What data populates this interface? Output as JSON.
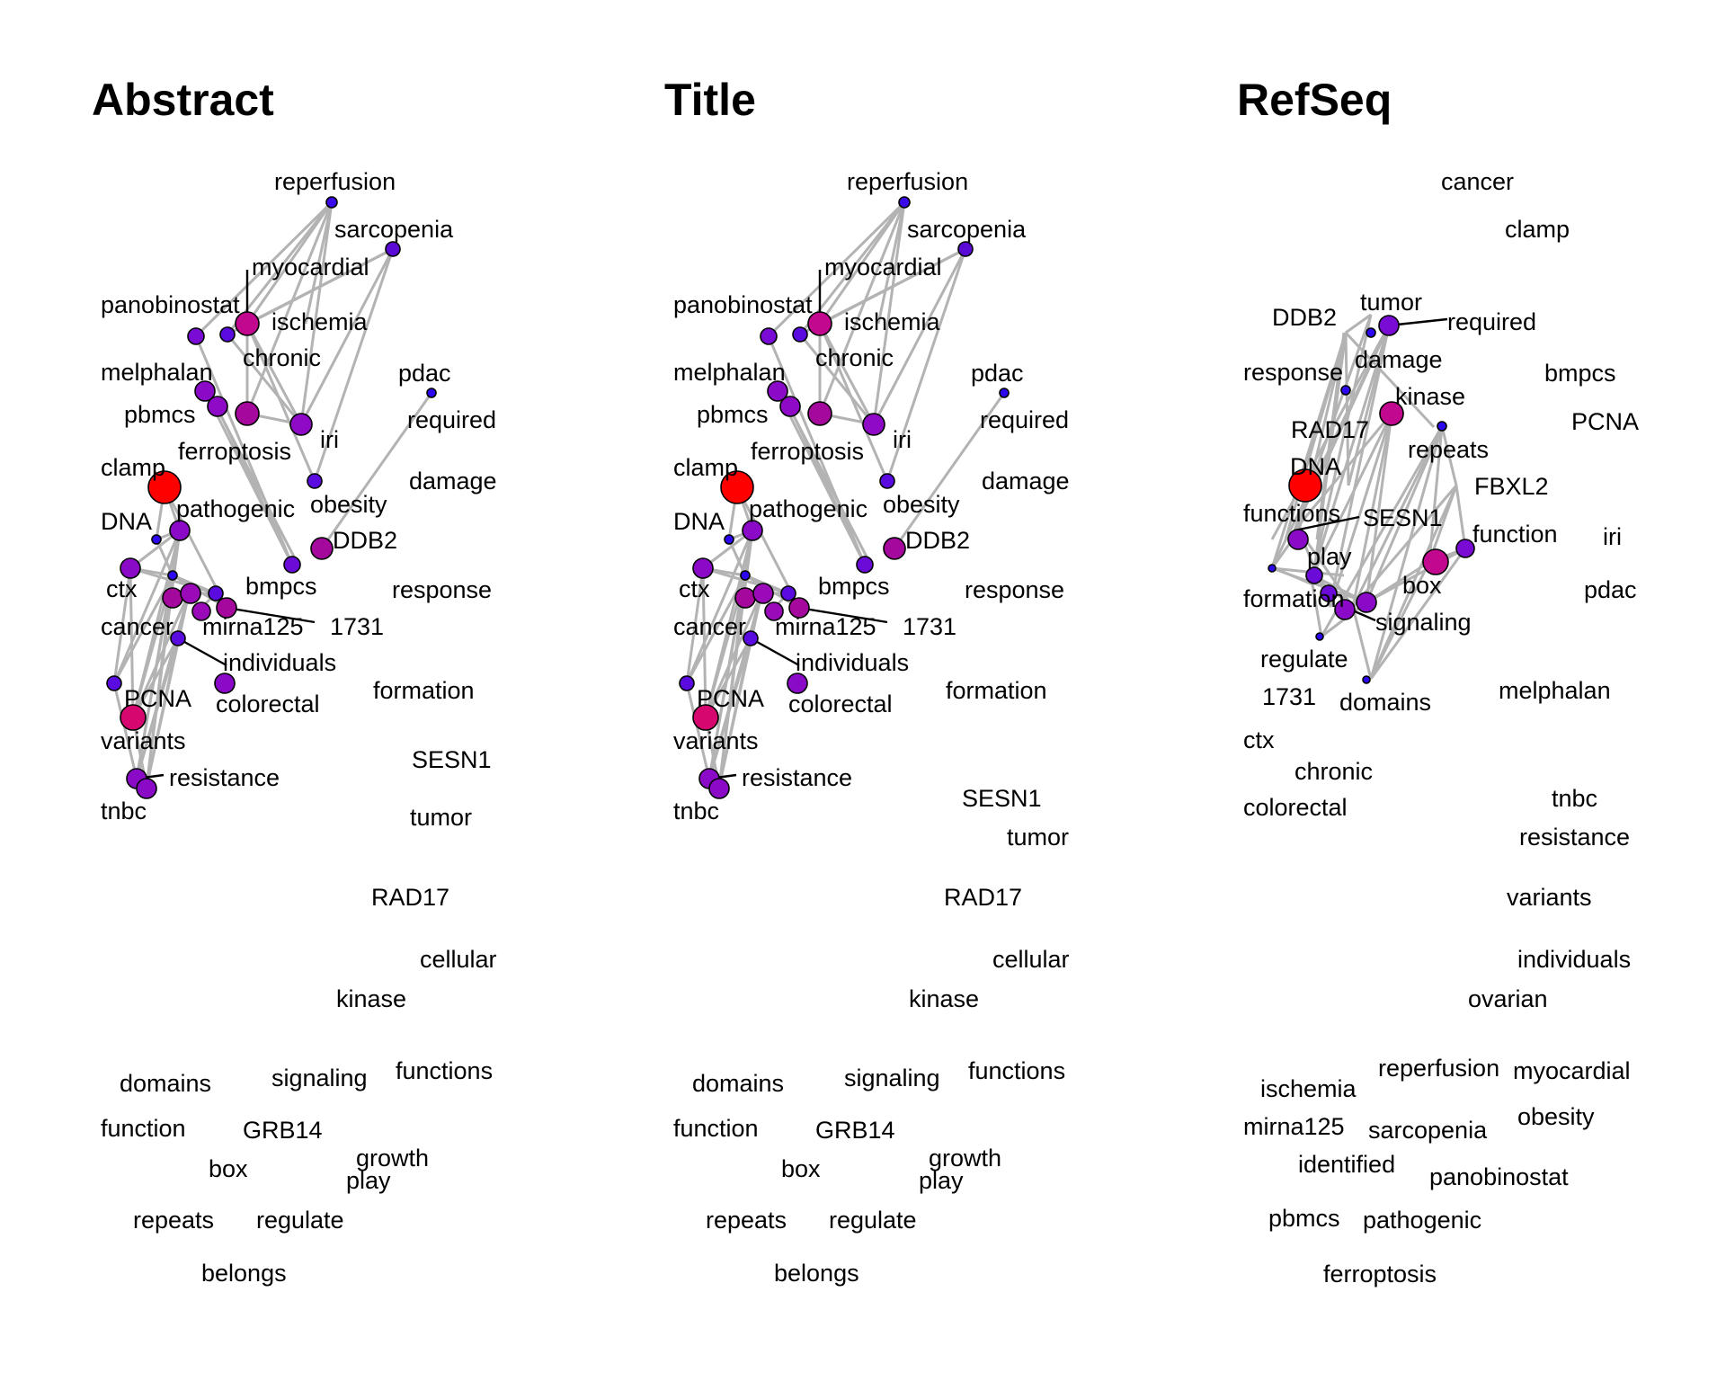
{
  "panels": [
    {
      "title": "Abstract",
      "words": [
        "reperfusion",
        "sarcopenia",
        "myocardial",
        "panobinostat",
        "ischemia",
        "chronic",
        "melphalan",
        "pdac",
        "pbmcs",
        "required",
        "ferroptosis",
        "iri",
        "clamp",
        "damage",
        "DNA",
        "pathogenic",
        "obesity",
        "DDB2",
        "ctx",
        "bmpcs",
        "response",
        "cancer",
        "mirna125",
        "1731",
        "individuals",
        "formation",
        "PCNA",
        "colorectal",
        "variants",
        "SESN1",
        "resistance",
        "tnbc",
        "tumor",
        "RAD17",
        "cellular",
        "kinase",
        "domains",
        "signaling",
        "functions",
        "function",
        "GRB14",
        "growth",
        "box",
        "play",
        "repeats",
        "regulate",
        "belongs"
      ],
      "nodes": [
        {
          "id": "reperfusion",
          "color": "#3b0ae8",
          "size": "small"
        },
        {
          "id": "sarcopenia",
          "color": "#5a0bd6",
          "size": "small"
        },
        {
          "id": "myocardial",
          "color": "#c2088f",
          "size": "large"
        },
        {
          "id": "panobinostat",
          "color": "#7a0bd4",
          "size": "medium"
        },
        {
          "id": "ischemia",
          "color": "#5a0be0",
          "size": "small"
        },
        {
          "id": "chronic",
          "color": "#a5089c",
          "size": "large"
        },
        {
          "id": "melphalan",
          "color": "#8a0ac8",
          "size": "medium"
        },
        {
          "id": "pbmcs",
          "color": "#8e0ac6",
          "size": "medium"
        },
        {
          "id": "pdac",
          "color": "#2b08f0",
          "size": "tiny"
        },
        {
          "id": "iri",
          "color": "#8e0ac6",
          "size": "medium"
        },
        {
          "id": "obesity",
          "color": "#5a0be0",
          "size": "small"
        },
        {
          "id": "clamp",
          "color": "#ff0000",
          "size": "xlarge"
        },
        {
          "id": "DNA",
          "color": "#2b08f0",
          "size": "tiny"
        },
        {
          "id": "pathogenic",
          "color": "#8a0ac8",
          "size": "medium"
        },
        {
          "id": "DDB2",
          "color": "#a5089c",
          "size": "medium"
        },
        {
          "id": "ctx",
          "color": "#8a0ac8",
          "size": "medium"
        },
        {
          "id": "bmpcs",
          "color": "#6a0bd8",
          "size": "small"
        },
        {
          "id": "cancer",
          "color": "#a5089c",
          "size": "medium"
        },
        {
          "id": "mirna125",
          "color": "#9a0ab8",
          "size": "medium"
        },
        {
          "id": "1731",
          "color": "#a5089c",
          "size": "medium"
        },
        {
          "id": "individuals",
          "color": "#5a0be0",
          "size": "small"
        },
        {
          "id": "colorectal",
          "color": "#8a0ac8",
          "size": "medium"
        },
        {
          "id": "PCNA",
          "color": "#d60870",
          "size": "large"
        },
        {
          "id": "resistance",
          "color": "#8a0ac8",
          "size": "medium"
        },
        {
          "id": "tnbc",
          "color": "#8a0ac8",
          "size": "medium"
        }
      ]
    },
    {
      "title": "Title",
      "words": [
        "reperfusion",
        "sarcopenia",
        "myocardial",
        "panobinostat",
        "ischemia",
        "chronic",
        "melphalan",
        "pdac",
        "pbmcs",
        "required",
        "ferroptosis",
        "iri",
        "clamp",
        "damage",
        "DNA",
        "pathogenic",
        "obesity",
        "DDB2",
        "ctx",
        "bmpcs",
        "response",
        "cancer",
        "mirna125",
        "1731",
        "individuals",
        "formation",
        "PCNA",
        "colorectal",
        "variants",
        "resistance",
        "tnbc",
        "SESN1",
        "tumor",
        "RAD17",
        "cellular",
        "kinase",
        "domains",
        "signaling",
        "functions",
        "function",
        "GRB14",
        "growth",
        "box",
        "play",
        "repeats",
        "regulate",
        "belongs"
      ]
    },
    {
      "title": "RefSeq",
      "words": [
        "cancer",
        "clamp",
        "tumor",
        "DDB2",
        "required",
        "response",
        "damage",
        "bmpcs",
        "kinase",
        "RAD17",
        "PCNA",
        "DNA",
        "repeats",
        "FBXL2",
        "functions",
        "SESN1",
        "function",
        "iri",
        "play",
        "box",
        "pdac",
        "formation",
        "signaling",
        "regulate",
        "melphalan",
        "1731",
        "domains",
        "ctx",
        "chronic",
        "tnbc",
        "colorectal",
        "resistance",
        "variants",
        "individuals",
        "ovarian",
        "reperfusion",
        "myocardial",
        "ischemia",
        "obesity",
        "mirna125",
        "sarcopenia",
        "identified",
        "panobinostat",
        "pbmcs",
        "pathogenic",
        "ferroptosis"
      ]
    }
  ],
  "colors": {
    "edge": "#b3b3b3",
    "low": "#2b08f0",
    "high": "#ff0000"
  }
}
